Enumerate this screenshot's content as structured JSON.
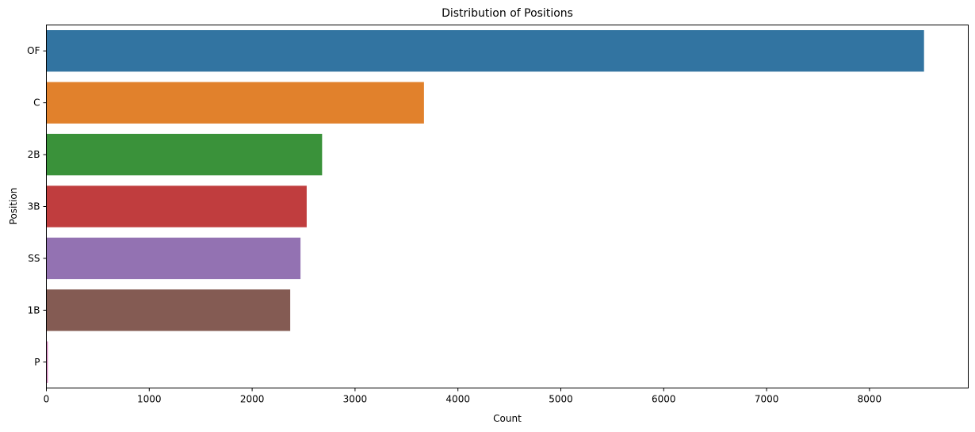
{
  "chart_data": {
    "type": "bar",
    "orientation": "horizontal",
    "title": "Distribution of Positions",
    "xlabel": "Count",
    "ylabel": "Position",
    "categories": [
      "OF",
      "C",
      "2B",
      "3B",
      "SS",
      "1B",
      "P"
    ],
    "values": [
      8530,
      3670,
      2680,
      2530,
      2470,
      2370,
      15
    ],
    "colors": [
      "#3274a1",
      "#e1812c",
      "#3a923a",
      "#c03d3e",
      "#9372b2",
      "#845b53",
      "#d684bd"
    ],
    "xlim": [
      0,
      8960
    ],
    "xticks": [
      0,
      1000,
      2000,
      3000,
      4000,
      5000,
      6000,
      7000,
      8000
    ],
    "grid": false,
    "legend": "none"
  }
}
